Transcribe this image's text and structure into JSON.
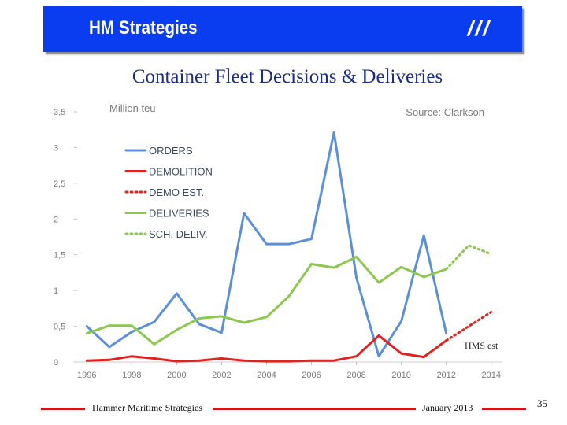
{
  "header": {
    "company": "HM Strategies",
    "mark": "///"
  },
  "slide": {
    "title": "Container Fleet Decisions & Deliveries"
  },
  "chart_data": {
    "type": "line",
    "ylabel": "Million teu",
    "source": "Source: Clarkson",
    "ylim": [
      0,
      3.5
    ],
    "yticks": [
      "0",
      "0,5",
      "1",
      "1,5",
      "2",
      "2,5",
      "3",
      "3,5"
    ],
    "xlim": [
      1995.5,
      2014.5
    ],
    "xticks": [
      "1996",
      "1998",
      "2000",
      "2002",
      "2004",
      "2006",
      "2008",
      "2010",
      "2012",
      "2014"
    ],
    "annotation": "HMS est",
    "series": [
      {
        "name": "ORDERS",
        "color": "#5b8fd8",
        "style": "solid",
        "points": [
          [
            1996,
            0.5
          ],
          [
            1997,
            0.21
          ],
          [
            1998,
            0.42
          ],
          [
            1999,
            0.56
          ],
          [
            2000,
            0.96
          ],
          [
            2001,
            0.53
          ],
          [
            2002,
            0.41
          ],
          [
            2003,
            2.08
          ],
          [
            2004,
            1.65
          ],
          [
            2005,
            1.65
          ],
          [
            2006,
            1.72
          ],
          [
            2007,
            3.21
          ],
          [
            2008,
            1.18
          ],
          [
            2009,
            0.08
          ],
          [
            2010,
            0.57
          ],
          [
            2011,
            1.77
          ],
          [
            2012,
            0.4
          ]
        ]
      },
      {
        "name": "DEMOLITION",
        "color": "#e0231f",
        "style": "solid",
        "points": [
          [
            1996,
            0.02
          ],
          [
            1997,
            0.03
          ],
          [
            1998,
            0.08
          ],
          [
            1999,
            0.05
          ],
          [
            2000,
            0.01
          ],
          [
            2001,
            0.02
          ],
          [
            2002,
            0.05
          ],
          [
            2003,
            0.02
          ],
          [
            2004,
            0.01
          ],
          [
            2005,
            0.01
          ],
          [
            2006,
            0.02
          ],
          [
            2007,
            0.02
          ],
          [
            2008,
            0.08
          ],
          [
            2009,
            0.37
          ],
          [
            2010,
            0.12
          ],
          [
            2011,
            0.07
          ],
          [
            2012,
            0.3
          ]
        ]
      },
      {
        "name": "DEMO EST.",
        "color": "#e0231f",
        "style": "dotted",
        "points": [
          [
            2012,
            0.3
          ],
          [
            2013,
            0.5
          ],
          [
            2014,
            0.7
          ]
        ]
      },
      {
        "name": "DELIVERIES",
        "color": "#8cc850",
        "style": "solid",
        "points": [
          [
            1996,
            0.4
          ],
          [
            1997,
            0.51
          ],
          [
            1998,
            0.51
          ],
          [
            1999,
            0.25
          ],
          [
            2000,
            0.45
          ],
          [
            2001,
            0.61
          ],
          [
            2002,
            0.64
          ],
          [
            2003,
            0.55
          ],
          [
            2004,
            0.63
          ],
          [
            2005,
            0.92
          ],
          [
            2006,
            1.37
          ],
          [
            2007,
            1.32
          ],
          [
            2008,
            1.47
          ],
          [
            2009,
            1.11
          ],
          [
            2010,
            1.33
          ],
          [
            2011,
            1.19
          ],
          [
            2012,
            1.3
          ]
        ]
      },
      {
        "name": "SCH. DELIV.",
        "color": "#8cc850",
        "style": "dotted",
        "points": [
          [
            2012,
            1.3
          ],
          [
            2013,
            1.63
          ],
          [
            2014,
            1.51
          ]
        ]
      }
    ]
  },
  "footer": {
    "left": "Hammer Maritime Strategies",
    "date": "January 2013",
    "page": "35"
  }
}
